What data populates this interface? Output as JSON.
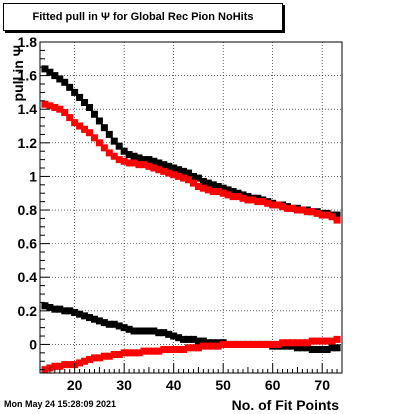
{
  "chart_data": {
    "type": "scatter",
    "title": "Fitted pull in  Ψ  for Global Rec Pion NoHits",
    "xlabel": "No. of Fit Points",
    "ylabel": "pull in  Ψ",
    "xlim": [
      13,
      74
    ],
    "ylim": [
      -0.17,
      1.8
    ],
    "x_ticks": [
      20,
      30,
      40,
      50,
      60,
      70
    ],
    "y_ticks": [
      0,
      0.2,
      0.4,
      0.6,
      0.8,
      1,
      1.2,
      1.4,
      1.6,
      1.8
    ],
    "x_tick_labels": [
      "20",
      "30",
      "40",
      "50",
      "60",
      "70"
    ],
    "y_tick_labels": [
      "0",
      "0.2",
      "0.4",
      "0.6",
      "0.8",
      "1",
      "1.2",
      "1.4",
      "1.6",
      "1.8"
    ],
    "grid": true,
    "series": [
      {
        "color": "#000000",
        "marker": "square",
        "x": [
          14,
          15,
          16,
          17,
          18,
          19,
          20,
          21,
          22,
          23,
          24,
          25,
          26,
          27,
          28,
          29,
          30,
          31,
          32,
          33,
          34,
          35,
          36,
          37,
          38,
          39,
          40,
          41,
          42,
          43,
          44,
          45,
          46,
          47,
          48,
          49,
          50,
          51,
          52,
          53,
          54,
          55,
          56,
          57,
          58,
          59,
          60,
          61,
          62,
          63,
          64,
          65,
          66,
          67,
          68,
          69,
          70,
          71,
          72,
          73
        ],
        "y": [
          1.64,
          1.62,
          1.6,
          1.58,
          1.56,
          1.53,
          1.5,
          1.47,
          1.44,
          1.41,
          1.37,
          1.33,
          1.29,
          1.25,
          1.21,
          1.18,
          1.15,
          1.13,
          1.12,
          1.11,
          1.1,
          1.1,
          1.09,
          1.08,
          1.07,
          1.06,
          1.05,
          1.04,
          1.03,
          1.02,
          1.0,
          0.99,
          0.97,
          0.96,
          0.95,
          0.94,
          0.93,
          0.92,
          0.91,
          0.9,
          0.89,
          0.88,
          0.87,
          0.87,
          0.86,
          0.85,
          0.84,
          0.83,
          0.83,
          0.82,
          0.81,
          0.81,
          0.8,
          0.8,
          0.79,
          0.79,
          0.78,
          0.78,
          0.77,
          0.77
        ]
      },
      {
        "color": "#ff0000",
        "marker": "square",
        "x": [
          14,
          15,
          16,
          17,
          18,
          19,
          20,
          21,
          22,
          23,
          24,
          25,
          26,
          27,
          28,
          29,
          30,
          31,
          32,
          33,
          34,
          35,
          36,
          37,
          38,
          39,
          40,
          41,
          42,
          43,
          44,
          45,
          46,
          47,
          48,
          49,
          50,
          51,
          52,
          53,
          54,
          55,
          56,
          57,
          58,
          59,
          60,
          61,
          62,
          63,
          64,
          65,
          66,
          67,
          68,
          69,
          70,
          71,
          72,
          73
        ],
        "y": [
          1.43,
          1.42,
          1.41,
          1.4,
          1.38,
          1.35,
          1.32,
          1.3,
          1.28,
          1.26,
          1.23,
          1.2,
          1.17,
          1.14,
          1.12,
          1.1,
          1.09,
          1.08,
          1.08,
          1.07,
          1.07,
          1.06,
          1.05,
          1.04,
          1.03,
          1.02,
          1.01,
          1.0,
          0.99,
          0.98,
          0.96,
          0.94,
          0.93,
          0.92,
          0.91,
          0.91,
          0.9,
          0.89,
          0.88,
          0.88,
          0.87,
          0.86,
          0.86,
          0.85,
          0.85,
          0.84,
          0.83,
          0.83,
          0.82,
          0.81,
          0.81,
          0.8,
          0.8,
          0.79,
          0.79,
          0.78,
          0.77,
          0.77,
          0.76,
          0.74
        ]
      },
      {
        "color": "#000000",
        "marker": "square",
        "x": [
          14,
          15,
          16,
          17,
          18,
          19,
          20,
          21,
          22,
          23,
          24,
          25,
          26,
          27,
          28,
          29,
          30,
          31,
          32,
          33,
          34,
          35,
          36,
          37,
          38,
          39,
          40,
          41,
          42,
          43,
          44,
          45,
          46,
          47,
          48,
          49,
          50,
          51,
          52,
          53,
          54,
          55,
          56,
          57,
          58,
          59,
          60,
          61,
          62,
          63,
          64,
          65,
          66,
          67,
          68,
          69,
          70,
          71,
          72,
          73
        ],
        "y": [
          0.23,
          0.22,
          0.21,
          0.21,
          0.2,
          0.2,
          0.19,
          0.18,
          0.17,
          0.16,
          0.15,
          0.14,
          0.13,
          0.12,
          0.12,
          0.11,
          0.1,
          0.09,
          0.08,
          0.08,
          0.08,
          0.08,
          0.08,
          0.07,
          0.07,
          0.06,
          0.05,
          0.04,
          0.03,
          0.03,
          0.03,
          0.02,
          0.02,
          0.01,
          0.01,
          0.01,
          0.01,
          0.0,
          0.0,
          0.0,
          0.0,
          0.0,
          0.0,
          0.0,
          0.0,
          0.0,
          -0.01,
          -0.01,
          -0.01,
          -0.01,
          -0.01,
          -0.02,
          -0.02,
          -0.02,
          -0.03,
          -0.03,
          -0.03,
          -0.03,
          -0.02,
          -0.02
        ]
      },
      {
        "color": "#ff0000",
        "marker": "square",
        "x": [
          14,
          15,
          16,
          17,
          18,
          19,
          20,
          21,
          22,
          23,
          24,
          25,
          26,
          27,
          28,
          29,
          30,
          31,
          32,
          33,
          34,
          35,
          36,
          37,
          38,
          39,
          40,
          41,
          42,
          43,
          44,
          45,
          46,
          47,
          48,
          49,
          50,
          51,
          52,
          53,
          54,
          55,
          56,
          57,
          58,
          59,
          60,
          61,
          62,
          63,
          64,
          65,
          66,
          67,
          68,
          69,
          70,
          71,
          72,
          73
        ],
        "y": [
          -0.15,
          -0.14,
          -0.13,
          -0.13,
          -0.12,
          -0.12,
          -0.12,
          -0.11,
          -0.1,
          -0.09,
          -0.08,
          -0.08,
          -0.07,
          -0.07,
          -0.06,
          -0.06,
          -0.05,
          -0.05,
          -0.05,
          -0.05,
          -0.04,
          -0.04,
          -0.04,
          -0.04,
          -0.03,
          -0.03,
          -0.03,
          -0.03,
          -0.03,
          -0.02,
          -0.02,
          -0.02,
          -0.01,
          -0.01,
          -0.01,
          -0.01,
          0.0,
          0.0,
          0.0,
          0.0,
          0.0,
          0.0,
          0.0,
          0.0,
          0.0,
          0.0,
          0.0,
          0.0,
          0.01,
          0.01,
          0.01,
          0.01,
          0.01,
          0.01,
          0.02,
          0.02,
          0.02,
          0.02,
          0.02,
          0.03
        ]
      }
    ]
  },
  "footer": {
    "timestamp": "Mon May 24 15:28:09 2021"
  }
}
